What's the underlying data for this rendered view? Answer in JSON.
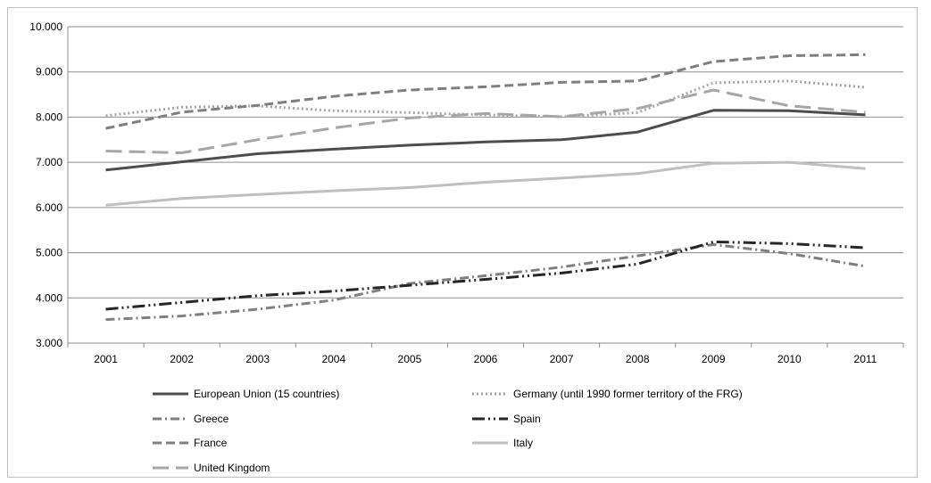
{
  "chart_data": {
    "type": "line",
    "title": "",
    "xlabel": "",
    "ylabel": "",
    "categories": [
      "2001",
      "2002",
      "2003",
      "2004",
      "2005",
      "2006",
      "2007",
      "2008",
      "2009",
      "2010",
      "2011"
    ],
    "ylim": [
      3000,
      10000
    ],
    "yticks": [
      3000,
      4000,
      5000,
      6000,
      7000,
      8000,
      9000,
      10000
    ],
    "ytick_labels": [
      "3.000",
      "4.000",
      "5.000",
      "6.000",
      "7.000",
      "8.000",
      "9.000",
      "10.000"
    ],
    "grid": true,
    "legend_position": "bottom",
    "series": [
      {
        "name": "European Union (15 countries)",
        "color": "#4d4d4d",
        "dash": "solid",
        "values": [
          6830,
          7010,
          7190,
          7290,
          7380,
          7450,
          7500,
          7670,
          8150,
          8140,
          8050
        ]
      },
      {
        "name": "Germany (until 1990 former territory of the FRG)",
        "color": "#a6a6a6",
        "dash": "dotted",
        "values": [
          8030,
          8220,
          8250,
          8140,
          8100,
          8050,
          8010,
          8100,
          8760,
          8800,
          8660
        ]
      },
      {
        "name": "Greece",
        "color": "#7f7f7f",
        "dash": "dashdot",
        "values": [
          3520,
          3600,
          3750,
          3950,
          4320,
          4490,
          4680,
          4930,
          5180,
          4980,
          4700
        ]
      },
      {
        "name": "Spain",
        "color": "#262626",
        "dash": "dashdotdot",
        "values": [
          3750,
          3900,
          4050,
          4150,
          4280,
          4410,
          4550,
          4750,
          5240,
          5200,
          5110
        ]
      },
      {
        "name": "France",
        "color": "#7f7f7f",
        "dash": "dashed",
        "values": [
          7750,
          8110,
          8260,
          8460,
          8600,
          8670,
          8770,
          8800,
          9230,
          9360,
          9380
        ]
      },
      {
        "name": "Italy",
        "color": "#bfbfbf",
        "dash": "solid",
        "values": [
          6050,
          6200,
          6290,
          6370,
          6440,
          6560,
          6650,
          6750,
          6980,
          7000,
          6860
        ]
      },
      {
        "name": "United Kingdom",
        "color": "#a6a6a6",
        "dash": "longdash",
        "values": [
          7250,
          7210,
          7500,
          7760,
          7980,
          8080,
          8010,
          8190,
          8600,
          8250,
          8110
        ]
      }
    ]
  }
}
